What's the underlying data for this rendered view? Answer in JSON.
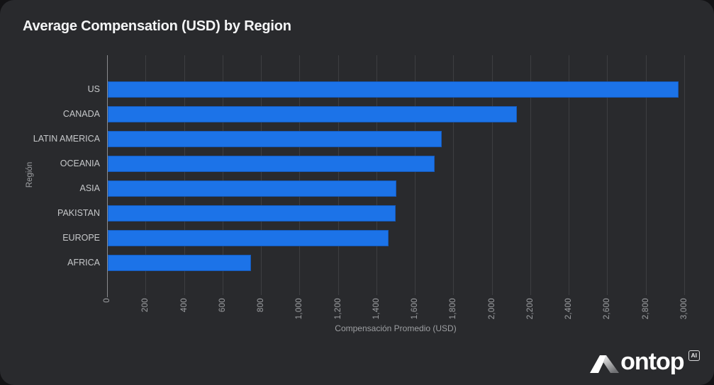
{
  "card": {
    "title": "Average Compensation (USD) by Region"
  },
  "chart_data": {
    "type": "bar",
    "orientation": "horizontal",
    "title": "Average Compensation (USD) by Region",
    "categories": [
      "US",
      "CANADA",
      "LATIN AMERICA",
      "OCEANIA",
      "ASIA",
      "PAKISTAN",
      "EUROPE",
      "AFRICA"
    ],
    "values": [
      2965,
      2125,
      1735,
      1700,
      1500,
      1495,
      1460,
      745
    ],
    "xlabel": "Compensación Promedio (USD)",
    "ylabel": "Región",
    "xlim": [
      0,
      3000
    ],
    "xticks": [
      0,
      200,
      400,
      600,
      800,
      1000,
      1200,
      1400,
      1600,
      1800,
      2000,
      2200,
      2400,
      2600,
      2800,
      3000
    ],
    "xtick_labels": [
      "0",
      "200",
      "400",
      "600",
      "800",
      "1,000",
      "1,200",
      "1,400",
      "1,600",
      "1,800",
      "2,000",
      "2,200",
      "2,400",
      "2,600",
      "2,800",
      "3,000"
    ],
    "grid": true,
    "legend": "none",
    "bar_color": "#1c73e8"
  },
  "colors": {
    "card_background": "#292a2d",
    "page_background": "#131315",
    "bar": "#1c73e8",
    "gridline": "#3d3e41",
    "title_text": "#f4f5f6",
    "axis_text": "#9d9fa2",
    "category_text": "#c6c8ca"
  },
  "logo": {
    "brand": "ontop",
    "badge": "AI"
  }
}
